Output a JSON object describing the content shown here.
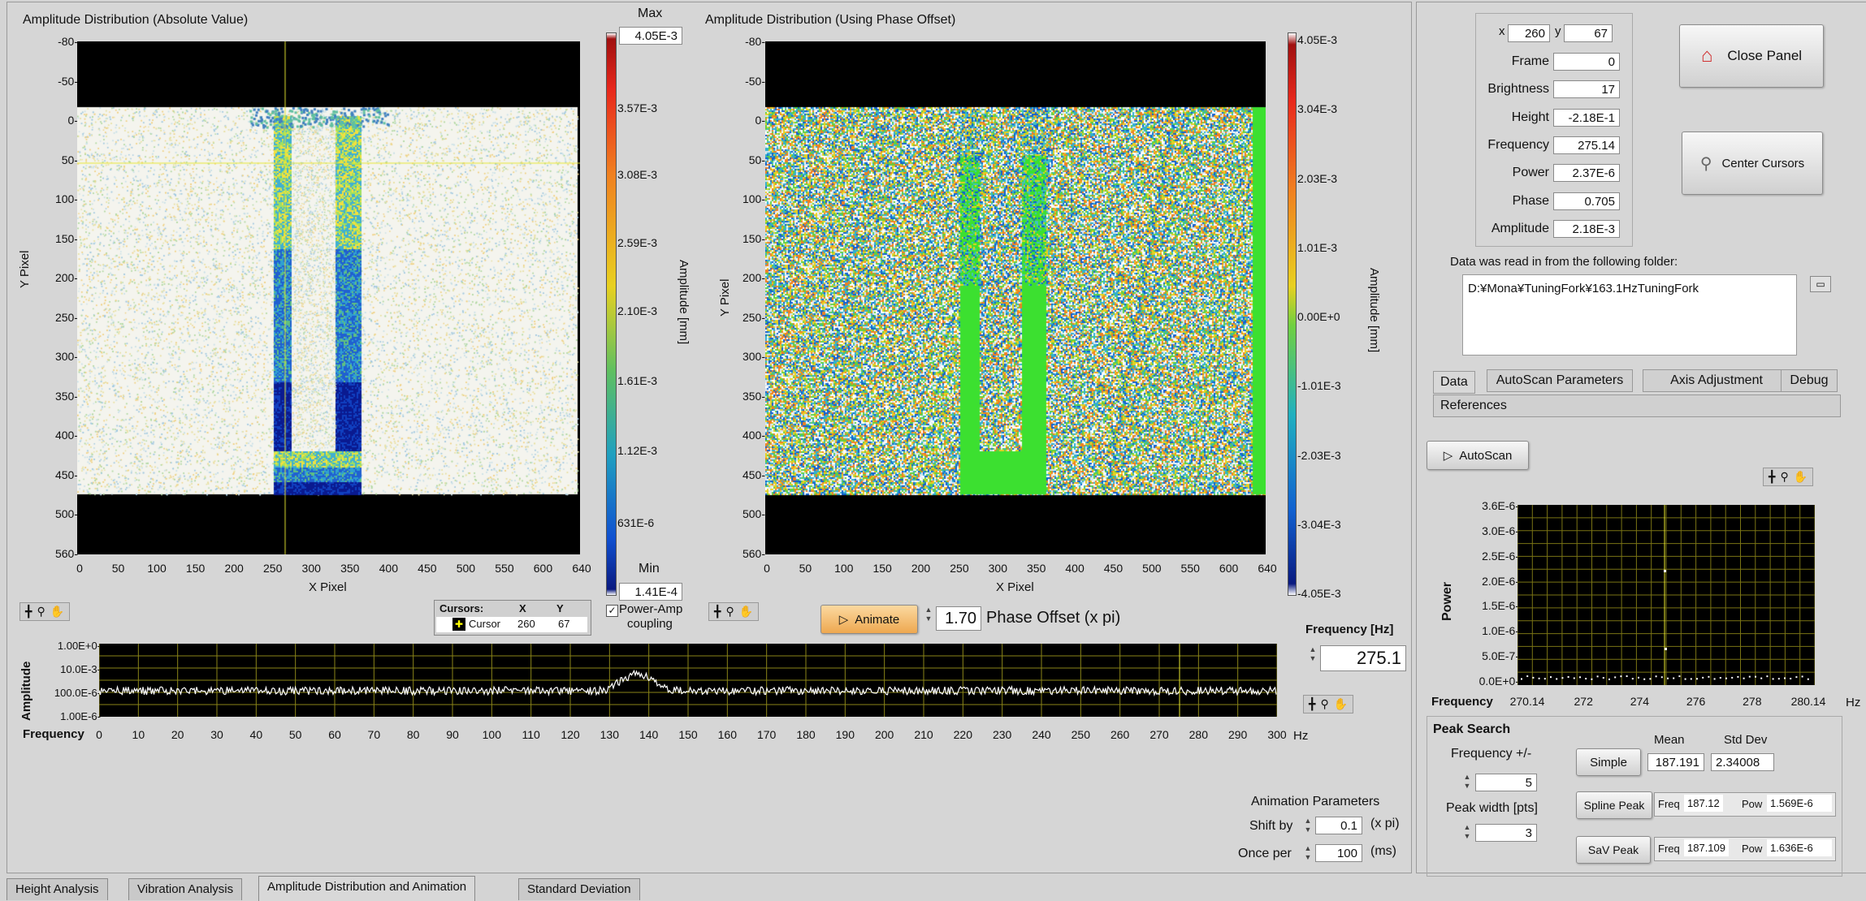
{
  "left_plot": {
    "title": "Amplitude Distribution (Absolute Value)",
    "ylabel": "Y Pixel",
    "xlabel": "X Pixel",
    "y_ticks": [
      "-80-",
      "-50-",
      "0-",
      "50-",
      "100-",
      "150-",
      "200-",
      "250-",
      "300-",
      "350-",
      "400-",
      "450-",
      "500-",
      "560-"
    ],
    "x_ticks": [
      "0",
      "50",
      "100",
      "150",
      "200",
      "250",
      "300",
      "350",
      "400",
      "450",
      "500",
      "550",
      "600",
      "640"
    ]
  },
  "colorbar_left": {
    "max_label": "Max",
    "max_value": "4.05E-3",
    "min_label": "Min",
    "min_value": "1.41E-4",
    "ticks": [
      "3.57E-3",
      "3.08E-3",
      "2.59E-3",
      "2.10E-3",
      "1.61E-3",
      "1.12E-3",
      "631E-6"
    ],
    "axis_label": "Amplitude [mm]"
  },
  "right_plot": {
    "title": "Amplitude Distribution (Using Phase Offset)",
    "ylabel": "Y Pixel",
    "xlabel": "X Pixel",
    "y_ticks": [
      "-80-",
      "-50-",
      "0-",
      "50-",
      "100-",
      "150-",
      "200-",
      "250-",
      "300-",
      "350-",
      "400-",
      "450-",
      "500-",
      "560-"
    ],
    "x_ticks": [
      "0",
      "50",
      "100",
      "150",
      "200",
      "250",
      "300",
      "350",
      "400",
      "450",
      "500",
      "550",
      "600",
      "640"
    ]
  },
  "colorbar_right": {
    "ticks": [
      "4.05E-3",
      "3.04E-3",
      "2.03E-3",
      "1.01E-3",
      "0.00E+0",
      "-1.01E-3",
      "-2.03E-3",
      "-3.04E-3",
      "-4.05E-3"
    ],
    "axis_label": "Amplitude [mm]"
  },
  "cursor_table": {
    "header": [
      "Cursors:",
      "X",
      "Y"
    ],
    "row": [
      "Cursor",
      "260",
      "67"
    ]
  },
  "power_amp": {
    "label_line1": "Power-Amp",
    "label_line2": "coupling",
    "checked": true
  },
  "animate": {
    "button": "Animate",
    "phase_value": "1.70",
    "phase_label": "Phase Offset (x pi)"
  },
  "spectrum": {
    "ylabel": "Amplitude",
    "xlabel": "Frequency",
    "unit": "Hz",
    "y_ticks": [
      "1.00E+0-",
      "10.0E-3-",
      "100.0E-6-",
      "1.00E-6-"
    ],
    "x_ticks": [
      "0",
      "10",
      "20",
      "30",
      "40",
      "50",
      "60",
      "70",
      "80",
      "90",
      "100",
      "110",
      "120",
      "130",
      "140",
      "150",
      "160",
      "170",
      "180",
      "190",
      "200",
      "210",
      "220",
      "230",
      "240",
      "250",
      "260",
      "270",
      "280",
      "290",
      "300"
    ]
  },
  "frequency_box": {
    "label": "Frequency [Hz]",
    "value": "275.1"
  },
  "animation_params": {
    "title": "Animation Parameters",
    "shift_label": "Shift by",
    "shift_value": "0.1",
    "shift_unit": "(x pi)",
    "once_label": "Once per",
    "once_value": "100",
    "once_unit": "(ms)"
  },
  "info": {
    "x_label": "x",
    "x_value": "260",
    "y_label": "y",
    "y_value": "67",
    "fields": [
      {
        "label": "Frame",
        "value": "0"
      },
      {
        "label": "Brightness",
        "value": "17"
      },
      {
        "label": "Height",
        "value": "-2.18E-1"
      },
      {
        "label": "Frequency",
        "value": "275.14"
      },
      {
        "label": "Power",
        "value": "2.37E-6"
      },
      {
        "label": "Phase",
        "value": "0.705"
      },
      {
        "label": "Amplitude",
        "value": "2.18E-3"
      }
    ]
  },
  "buttons": {
    "close_panel": "Close Panel",
    "center_cursors": "Center Cursors",
    "autoscan": "AutoScan"
  },
  "folder": {
    "label": "Data was read in from the following folder:",
    "path": "D:¥Mona¥TuningFork¥163.1HzTuningFork"
  },
  "right_tabs": [
    "Data",
    "AutoScan Parameters",
    "Axis Adjustment",
    "Debug",
    "References"
  ],
  "power_plot": {
    "ylabel": "Power",
    "xlabel": "Frequency",
    "unit": "Hz",
    "y_ticks": [
      "3.6E-6-",
      "3.0E-6-",
      "2.5E-6-",
      "2.0E-6-",
      "1.5E-6-",
      "1.0E-6-",
      "5.0E-7-",
      "0.0E+0-"
    ],
    "x_ticks": [
      "270.14",
      "272",
      "274",
      "276",
      "278",
      "280.14"
    ]
  },
  "peak_search": {
    "title": "Peak Search",
    "freq_label": "Frequency +/-",
    "freq_value": "5",
    "width_label": "Peak width [pts]",
    "width_value": "3",
    "mean_label": "Mean",
    "std_label": "Std Dev",
    "simple_button": "Simple",
    "simple_mean": "187.191",
    "simple_std": "2.34008",
    "spline_button": "Spline Peak",
    "spline_freq_label": "Freq",
    "spline_freq": "187.12",
    "spline_pow_label": "Pow",
    "spline_pow": "1.569E-6",
    "sav_button": "SaV Peak",
    "sav_freq_label": "Freq",
    "sav_freq": "187.109",
    "sav_pow_label": "Pow",
    "sav_pow": "1.636E-6"
  },
  "bottom_tabs": [
    "Height Analysis",
    "Vibration Analysis",
    "Amplitude Distribution and Animation",
    "Standard Deviation"
  ],
  "colors": {
    "cursor": "#e8e830",
    "plot_bg": "#000000",
    "grid": "#b8b020",
    "accent_button": "#f0c070"
  }
}
